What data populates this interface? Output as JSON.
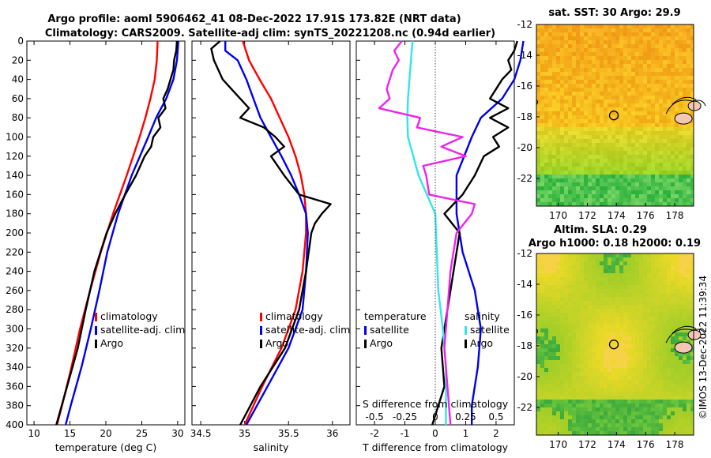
{
  "titles": {
    "line1": "Argo profile: aoml 5906462_41 08-Dec-2022 17.91S 173.82E (NRT data)",
    "line2": "Climatology: CARS2009. Satellite-adj clim: synTS_20221208.nc (0.94d earlier)",
    "map_top": "sat. SST: 30 Argo: 29.9",
    "map_bottom_1": "Altim. SLA: 0.29",
    "map_bottom_2": "Argo h1000: 0.18 h2000: 0.19",
    "credit": "©IMOS 13-Dec-2022 11:39:34"
  },
  "colors": {
    "climatology": "#ff0000",
    "satellite": "#0000ee",
    "argo": "#000000",
    "salinity_diff": "#33e6e6",
    "temperature_diff": "#ee22ee"
  },
  "chart_data": [
    {
      "type": "line",
      "name": "temperature-profile",
      "xlabel": "temperature (deg C)",
      "ylabel": "depth",
      "xlim": [
        9,
        31
      ],
      "ylim": [
        0,
        400
      ],
      "xticks": [
        10,
        15,
        20,
        25,
        30
      ],
      "yticks": [
        0,
        20,
        40,
        60,
        80,
        100,
        120,
        140,
        160,
        180,
        200,
        220,
        240,
        260,
        280,
        300,
        320,
        340,
        360,
        380,
        400
      ],
      "series": [
        {
          "name": "climatology",
          "depth": [
            0,
            20,
            40,
            60,
            80,
            100,
            140,
            180,
            220,
            260,
            300,
            340,
            380,
            400
          ],
          "values": [
            27.2,
            27.1,
            26.8,
            26.2,
            25.5,
            24.7,
            22.9,
            21.0,
            19.3,
            17.8,
            16.4,
            15.2,
            13.9,
            13.2
          ]
        },
        {
          "name": "satellite-adj. clim",
          "depth": [
            0,
            20,
            40,
            60,
            80,
            100,
            140,
            180,
            220,
            260,
            300,
            340,
            380,
            400
          ],
          "values": [
            30.1,
            29.9,
            29.4,
            28.4,
            27.0,
            25.9,
            23.6,
            21.7,
            20.2,
            19.1,
            17.9,
            16.6,
            15.1,
            14.4
          ]
        },
        {
          "name": "Argo",
          "depth": [
            0,
            10,
            20,
            30,
            40,
            50,
            60,
            70,
            80,
            90,
            100,
            110,
            120,
            140,
            160,
            180,
            200,
            240,
            280,
            320,
            360,
            400
          ],
          "values": [
            29.9,
            29.8,
            29.5,
            29.4,
            29.0,
            28.6,
            28.0,
            28.3,
            27.3,
            27.6,
            26.6,
            26.3,
            25.4,
            24.2,
            22.7,
            21.3,
            20.1,
            18.4,
            17.2,
            16.1,
            14.6,
            13.1
          ]
        }
      ],
      "legend": [
        "climatology",
        "satellite-adj. clim",
        "Argo"
      ]
    },
    {
      "type": "line",
      "name": "salinity-profile",
      "xlabel": "salinity",
      "ylabel": "depth",
      "xlim": [
        34.4,
        36.2
      ],
      "ylim": [
        0,
        400
      ],
      "xticks": [
        34.5,
        35,
        35.5,
        36
      ],
      "xtick_labels": [
        "34.5",
        "35",
        "35.5",
        "36"
      ],
      "series": [
        {
          "name": "climatology",
          "depth": [
            0,
            20,
            40,
            60,
            80,
            100,
            120,
            140,
            160,
            180,
            200,
            240,
            280,
            320,
            360,
            400
          ],
          "values": [
            34.98,
            35.05,
            35.17,
            35.3,
            35.4,
            35.5,
            35.58,
            35.64,
            35.68,
            35.7,
            35.7,
            35.66,
            35.58,
            35.42,
            35.2,
            35.0
          ]
        },
        {
          "name": "satellite-adj. clim",
          "depth": [
            0,
            10,
            20,
            40,
            60,
            80,
            100,
            120,
            140,
            160,
            180,
            200,
            240,
            280,
            320,
            360,
            400
          ],
          "values": [
            34.78,
            34.78,
            34.92,
            35.02,
            35.1,
            35.18,
            35.3,
            35.42,
            35.53,
            35.62,
            35.7,
            35.72,
            35.7,
            35.66,
            35.5,
            35.26,
            35.02
          ]
        },
        {
          "name": "Argo",
          "depth": [
            0,
            8,
            20,
            30,
            40,
            50,
            60,
            70,
            80,
            90,
            100,
            110,
            120,
            140,
            160,
            170,
            180,
            190,
            200,
            240,
            280,
            320,
            360,
            400
          ],
          "values": [
            34.72,
            34.62,
            34.65,
            34.7,
            34.75,
            34.85,
            34.95,
            35.05,
            34.95,
            35.22,
            35.35,
            35.45,
            35.3,
            35.45,
            35.62,
            35.98,
            35.88,
            35.8,
            35.76,
            35.7,
            35.62,
            35.46,
            35.18,
            34.95
          ]
        }
      ],
      "legend": [
        "climatology",
        "satellite-adj. clim",
        "Argo"
      ]
    },
    {
      "type": "line",
      "name": "difference-profile",
      "xlabel": "T difference from climatology",
      "top_xlabel": "S difference from climatology",
      "xlim": [
        -2.6,
        2.6
      ],
      "ylim": [
        0,
        400
      ],
      "xticks": [
        -2,
        -1,
        0,
        1,
        2
      ],
      "top_ticks": [
        -0.5,
        -0.25,
        0,
        0.25,
        0.5
      ],
      "top_tick_labels": [
        "-0.5",
        "-0.25",
        "0",
        "0.25",
        "0.5"
      ],
      "series": [
        {
          "name": "temperature satellite",
          "depth": [
            0,
            20,
            40,
            60,
            80,
            100,
            140,
            180,
            220,
            260,
            300,
            340,
            380,
            400
          ],
          "values": [
            2.9,
            2.8,
            2.6,
            2.2,
            1.5,
            1.2,
            0.7,
            0.7,
            0.9,
            1.3,
            1.5,
            1.4,
            1.2,
            1.2
          ]
        },
        {
          "name": "temperature Argo",
          "depth": [
            0,
            10,
            20,
            30,
            40,
            50,
            60,
            70,
            80,
            90,
            100,
            110,
            120,
            140,
            160,
            180,
            200,
            240,
            280,
            320,
            360,
            400
          ],
          "values": [
            2.7,
            2.6,
            2.4,
            2.5,
            2.2,
            2.0,
            1.8,
            2.4,
            1.8,
            2.4,
            1.9,
            2.1,
            1.6,
            1.3,
            0.9,
            0.3,
            0.8,
            0.6,
            0.4,
            0.2,
            0.3,
            -0.1
          ]
        },
        {
          "name": "salinity satellite",
          "depth": [
            0,
            20,
            40,
            60,
            80,
            100,
            140,
            180,
            220,
            260,
            300,
            340,
            380,
            400
          ],
          "values": [
            -0.75,
            -0.8,
            -0.85,
            -0.9,
            -0.92,
            -0.9,
            -0.55,
            0.0,
            0.05,
            0.1,
            0.25,
            0.35,
            0.35,
            0.35
          ]
        },
        {
          "name": "salinity Argo",
          "depth": [
            0,
            10,
            20,
            30,
            40,
            50,
            60,
            70,
            80,
            90,
            100,
            110,
            120,
            130,
            140,
            160,
            170,
            180,
            200,
            240,
            280,
            320,
            360,
            400
          ],
          "values": [
            -1.1,
            -1.35,
            -1.2,
            -1.4,
            -1.5,
            -1.6,
            -1.5,
            -1.85,
            -0.5,
            -0.6,
            0.9,
            0.2,
            1.0,
            -0.4,
            -0.3,
            -0.2,
            1.3,
            1.2,
            0.7,
            0.5,
            0.4,
            0.3,
            0.4,
            0.5
          ]
        }
      ],
      "legend": {
        "left_title": "temperature",
        "right_title": "salinity",
        "items": [
          "satellite",
          "Argo"
        ]
      }
    },
    {
      "type": "heatmap",
      "name": "sst-map",
      "title": "sat. SST: 30 Argo: 29.9",
      "xlim": [
        168.5,
        179.3
      ],
      "ylim": [
        -23.8,
        -12
      ],
      "xticks": [
        170,
        172,
        174,
        176,
        178
      ],
      "yticks": [
        -12,
        -14,
        -16,
        -18,
        -20,
        -22
      ],
      "argo_position": {
        "lon": 173.82,
        "lat": -17.91
      }
    },
    {
      "type": "heatmap",
      "name": "sla-map",
      "title": "Altim. SLA: 0.29",
      "xlim": [
        168.5,
        179.3
      ],
      "ylim": [
        -23.8,
        -12
      ],
      "xticks": [
        170,
        172,
        174,
        176,
        178
      ],
      "yticks": [
        -12,
        -14,
        -16,
        -18,
        -20,
        -22
      ],
      "argo_position": {
        "lon": 173.82,
        "lat": -17.91
      }
    }
  ]
}
